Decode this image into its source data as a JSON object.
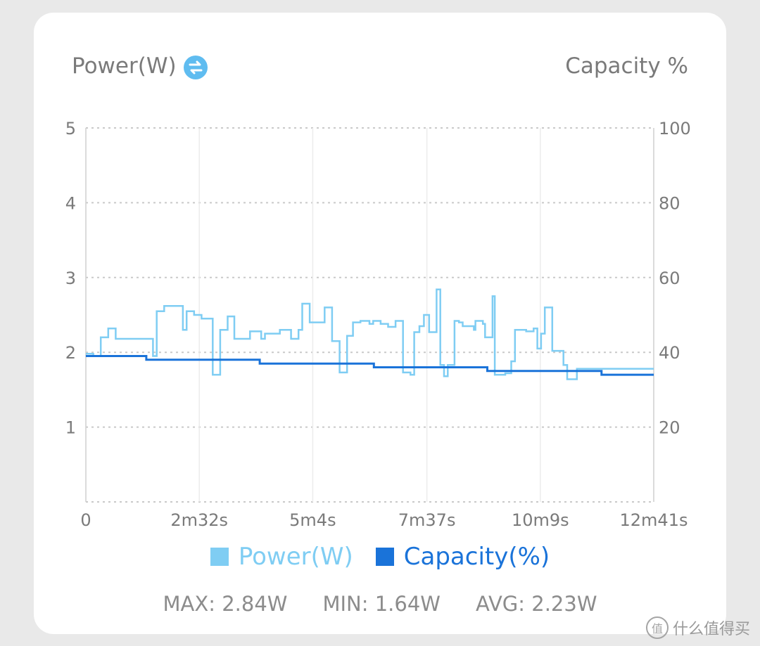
{
  "header": {
    "left_axis_title": "Power(W)",
    "right_axis_title": "Capacity %",
    "swap_icon": "swap-axes-icon"
  },
  "colors": {
    "power": "#7fcdf3",
    "capacity": "#1a73d9",
    "grid": "#c9c9c9",
    "tick_text": "#7a7a7a"
  },
  "chart_data": {
    "type": "line",
    "x_unit": "seconds",
    "xlim": [
      0,
      761
    ],
    "x_ticks": [
      {
        "value": 0,
        "label": "0"
      },
      {
        "value": 152,
        "label": "2m32s"
      },
      {
        "value": 304,
        "label": "5m4s"
      },
      {
        "value": 457,
        "label": "7m37s"
      },
      {
        "value": 609,
        "label": "10m9s"
      },
      {
        "value": 761,
        "label": "12m41s"
      }
    ],
    "y_left": {
      "label": "Power(W)",
      "lim": [
        0,
        5
      ],
      "ticks": [
        1,
        2,
        3,
        4,
        5
      ]
    },
    "y_right": {
      "label": "Capacity %",
      "lim": [
        0,
        100
      ],
      "ticks": [
        20,
        40,
        60,
        80,
        100
      ]
    },
    "grid": true,
    "legend_position": "bottom",
    "series": [
      {
        "name": "Power(W)",
        "axis": "left",
        "step": true,
        "color": "#7fcdf3",
        "x": [
          0,
          10,
          20,
          30,
          40,
          90,
          95,
          105,
          115,
          130,
          135,
          145,
          155,
          170,
          172,
          180,
          185,
          190,
          199,
          210,
          220,
          235,
          240,
          250,
          260,
          275,
          285,
          290,
          300,
          310,
          320,
          330,
          340,
          350,
          358,
          365,
          368,
          375,
          380,
          385,
          395,
          400,
          405,
          415,
          425,
          435,
          440,
          445,
          447,
          453,
          460,
          470,
          475,
          480,
          485,
          494,
          500,
          505,
          520,
          522,
          532,
          535,
          545,
          548,
          558,
          562,
          570,
          575,
          585,
          590,
          600,
          605,
          610,
          615,
          625,
          640,
          645,
          653,
          658,
          663,
          670,
          675,
          683,
          690,
          698,
          700,
          703,
          710,
          730,
          750,
          761
        ],
        "y": [
          1.98,
          1.95,
          2.2,
          2.32,
          2.18,
          1.95,
          2.55,
          2.62,
          2.62,
          2.3,
          2.55,
          2.5,
          2.45,
          1.7,
          1.7,
          2.3,
          2.3,
          2.48,
          2.18,
          2.18,
          2.28,
          2.18,
          2.25,
          2.25,
          2.3,
          2.18,
          2.3,
          2.65,
          2.4,
          2.4,
          2.6,
          2.15,
          1.73,
          2.22,
          2.4,
          2.4,
          2.42,
          2.42,
          2.38,
          2.42,
          2.38,
          2.38,
          2.34,
          2.42,
          1.73,
          1.7,
          2.27,
          2.27,
          2.35,
          2.5,
          2.27,
          2.84,
          1.83,
          1.68,
          1.83,
          2.42,
          2.4,
          2.35,
          2.3,
          2.42,
          2.38,
          2.2,
          2.75,
          1.7,
          1.7,
          1.72,
          1.88,
          2.3,
          2.3,
          2.28,
          2.32,
          2.05,
          2.25,
          2.6,
          2.02,
          1.83,
          1.64,
          1.64,
          1.78,
          1.78,
          1.78,
          1.78,
          1.78,
          1.78,
          1.78,
          1.78,
          1.78,
          1.78,
          1.78,
          1.78,
          1.78
        ]
      },
      {
        "name": "Capacity(%)",
        "axis": "right",
        "step": true,
        "color": "#1a73d9",
        "x": [
          0,
          80,
          81,
          232,
          233,
          385,
          386,
          537,
          538,
          690,
          691,
          761
        ],
        "y": [
          39,
          39,
          38,
          38,
          37,
          37,
          36,
          36,
          35,
          35,
          34,
          34
        ]
      }
    ]
  },
  "legend": {
    "power_label": "Power(W)",
    "capacity_label": "Capacity(%)"
  },
  "stats": {
    "max": "MAX: 2.84W",
    "min": "MIN: 1.64W",
    "avg": "AVG: 2.23W"
  },
  "watermark": {
    "icon_glyph": "值",
    "text": "什么值得买"
  }
}
